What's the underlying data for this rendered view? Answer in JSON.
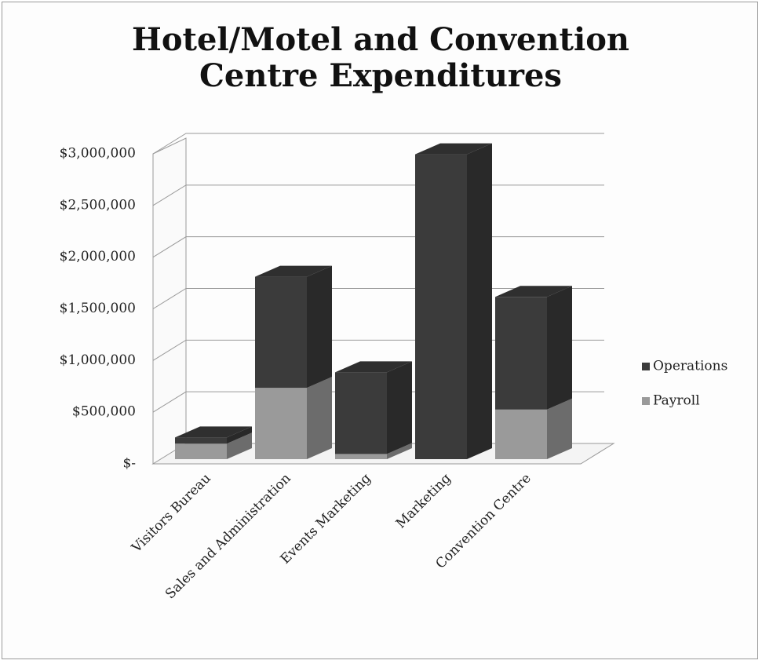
{
  "chart_data": {
    "type": "bar3d_stacked",
    "title": "Hotel/Motel and Convention Centre Expenditures",
    "categories": [
      "Visitors Bureau",
      "Sales and Administration",
      "Events Marketing",
      "Marketing",
      "Convention Centre"
    ],
    "series": [
      {
        "name": "Payroll",
        "color": "#9a9a9a",
        "values": [
          150000,
          690000,
          50000,
          0,
          480000
        ]
      },
      {
        "name": "Operations",
        "color": "#3b3b3b",
        "values": [
          60000,
          1075000,
          790000,
          2950000,
          1090000
        ]
      }
    ],
    "ylim": [
      0,
      3000000
    ],
    "yticks": [
      {
        "value": 0,
        "label": "$-"
      },
      {
        "value": 500000,
        "label": "$500,000"
      },
      {
        "value": 1000000,
        "label": "$1,000,000"
      },
      {
        "value": 1500000,
        "label": "$1,500,000"
      },
      {
        "value": 2000000,
        "label": "$2,000,000"
      },
      {
        "value": 2500000,
        "label": "$2,500,000"
      },
      {
        "value": 3000000,
        "label": "$3,000,000"
      }
    ],
    "grid": true,
    "legend": "right"
  }
}
